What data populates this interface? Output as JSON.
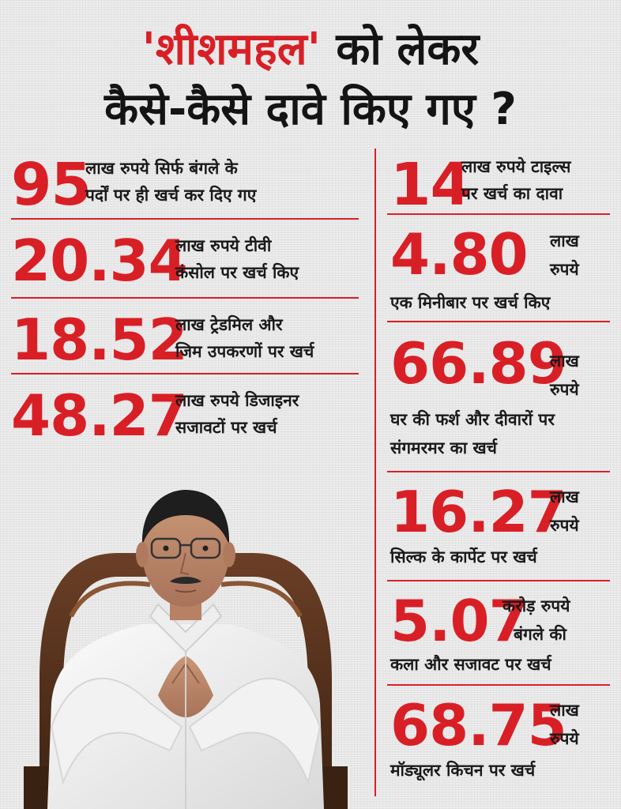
{
  "title": {
    "line1_highlight": "'शीशमहल'",
    "line1_rest": " को लेकर",
    "line2": "कैसे-कैसे दावे किए गए ?"
  },
  "left_items": [
    {
      "value": "95",
      "text1": "लाख रुपये सिर्फ बंगले के",
      "text2": "पर्दों पर ही खर्च कर दिए गए"
    },
    {
      "value": "20.34",
      "text1": "लाख रुपये टीवी",
      "text2": "कंसोल पर खर्च किए"
    },
    {
      "value": "18.52",
      "text1": "लाख ट्रेडमिल और",
      "text2": "जिम उपकरणों पर खर्च"
    },
    {
      "value": "48.27",
      "text1": "लाख रुपये डिजाइनर",
      "text2": "सजावटों पर खर्च"
    }
  ],
  "right_items": [
    {
      "value": "14",
      "text1": "लाख रुपये टाइल्स",
      "text2": "पर खर्च का दावा"
    },
    {
      "value": "4.80",
      "unit1": "लाख",
      "unit2": "रुपये",
      "desc1": "एक मिनीबार पर खर्च किए"
    },
    {
      "value": "66.89",
      "unit1": "लाख",
      "unit2": "रुपये",
      "desc1": "घर की फर्श और दीवारों पर",
      "desc2": "संगमरमर का खर्च"
    },
    {
      "value": "16.27",
      "unit1": "लाख",
      "unit2": "रुपये",
      "desc1": "सिल्क के कार्पेट पर खर्च"
    },
    {
      "value": "5.07",
      "unit1": "करोड़ रुपये",
      "unit2": "बंगले की",
      "desc1": "कला और सजावट पर खर्च"
    },
    {
      "value": "68.75",
      "unit1": "लाख",
      "unit2": "रुपये",
      "desc1": "मॉड्यूलर किचन पर खर्च"
    }
  ],
  "colors": {
    "accent": "#d91f26",
    "text": "#141414",
    "background": "#ececec"
  }
}
